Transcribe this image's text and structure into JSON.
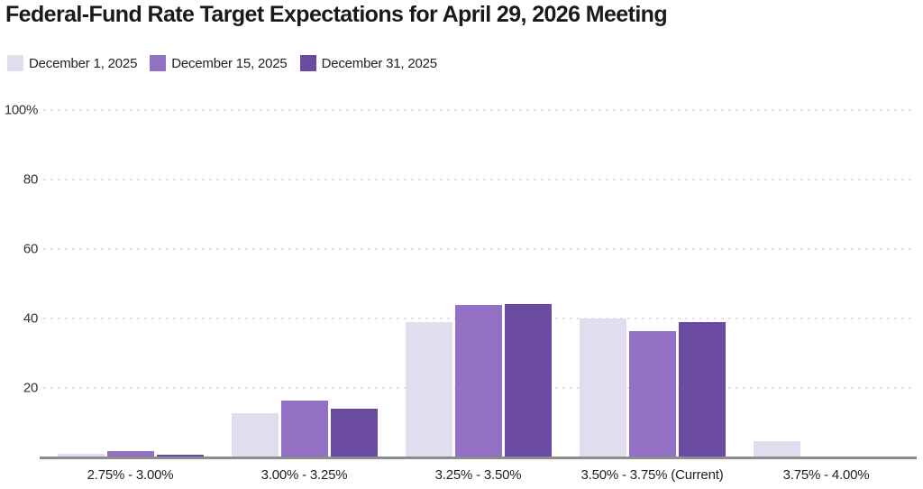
{
  "title": "Federal-Fund Rate Target Expectations for April 29, 2026 Meeting",
  "colors": {
    "series_light": "#e2dcef",
    "series_medium": "#9271c5",
    "series_dark": "#6b4aa2",
    "axis_line": "#8c8c8c",
    "gridline": "#e4e1e8",
    "title_text": "#1a1a1a",
    "tick_text": "#333333"
  },
  "chart_data": {
    "type": "bar",
    "title": "Federal-Fund Rate Target Expectations for April 29, 2026 Meeting",
    "categories": [
      "2.75% - 3.00%",
      "3.00% - 3.25%",
      "3.25% - 3.50%",
      "3.50% - 3.75% (Current)",
      "3.75% - 4.00%"
    ],
    "series": [
      {
        "name": "December 1, 2025",
        "color": "#e2dcef",
        "values": [
          1.1,
          12.8,
          39.0,
          40.0,
          4.7
        ]
      },
      {
        "name": "December 15, 2025",
        "color": "#9271c5",
        "values": [
          1.9,
          16.4,
          43.8,
          36.4,
          0
        ]
      },
      {
        "name": "December 31, 2025",
        "color": "#6b4aa2",
        "values": [
          0.9,
          14.0,
          44.2,
          39.0,
          0
        ]
      }
    ],
    "xlabel": "",
    "ylabel": "",
    "ylim": [
      0,
      100
    ],
    "yticks": [
      {
        "label": "100%",
        "value": 100
      },
      {
        "label": "80",
        "value": 80
      },
      {
        "label": "60",
        "value": 60
      },
      {
        "label": "40",
        "value": 40
      },
      {
        "label": "20",
        "value": 20
      }
    ],
    "grid": true,
    "legend_position": "top-left"
  }
}
